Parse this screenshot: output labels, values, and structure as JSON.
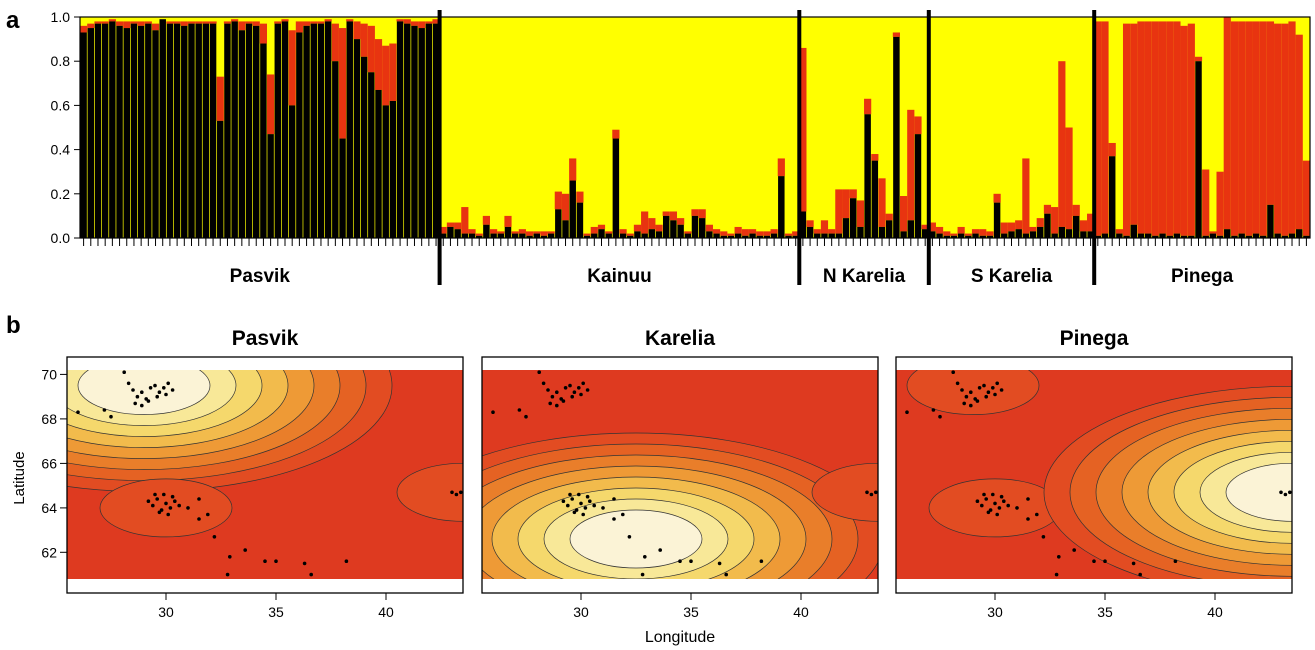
{
  "panel_labels": [
    "a",
    "b"
  ],
  "colors": {
    "yellow": "#ffff00",
    "red": "#e83410",
    "black": "#000000"
  },
  "chart_data": [
    {
      "type": "bar",
      "subtype": "stacked-admixture",
      "ylim": [
        0,
        1
      ],
      "yticks": [
        "0.0",
        "0.2",
        "0.4",
        "0.6",
        "0.8",
        "1.0"
      ],
      "stack_order": [
        "black",
        "red",
        "yellow"
      ],
      "groups": [
        {
          "name": "Pasvik",
          "black": [
            0.93,
            0.95,
            0.97,
            0.97,
            0.98,
            0.96,
            0.95,
            0.97,
            0.96,
            0.97,
            0.94,
            0.99,
            0.97,
            0.97,
            0.96,
            0.97,
            0.97,
            0.97,
            0.97,
            0.53,
            0.97,
            0.98,
            0.94,
            0.97,
            0.96,
            0.88,
            0.47,
            0.97,
            0.98,
            0.6,
            0.93,
            0.96,
            0.97,
            0.97,
            0.98,
            0.8,
            0.45,
            0.98,
            0.9,
            0.82,
            0.75,
            0.67,
            0.6,
            0.62,
            0.98,
            0.97,
            0.96,
            0.95,
            0.97,
            0.97
          ],
          "red": [
            0.03,
            0.02,
            0.01,
            0.01,
            0.01,
            0.02,
            0.03,
            0.01,
            0.02,
            0.01,
            0.03,
            0.0,
            0.01,
            0.01,
            0.02,
            0.01,
            0.01,
            0.01,
            0.01,
            0.2,
            0.01,
            0.01,
            0.04,
            0.01,
            0.02,
            0.09,
            0.27,
            0.01,
            0.01,
            0.34,
            0.05,
            0.02,
            0.01,
            0.01,
            0.01,
            0.17,
            0.5,
            0.01,
            0.08,
            0.15,
            0.21,
            0.23,
            0.27,
            0.26,
            0.01,
            0.02,
            0.02,
            0.03,
            0.01,
            0.02
          ]
        },
        {
          "name": "Kainuu",
          "black": [
            0.02,
            0.05,
            0.04,
            0.02,
            0.02,
            0.01,
            0.06,
            0.02,
            0.02,
            0.05,
            0.02,
            0.02,
            0.01,
            0.02,
            0.01,
            0.02,
            0.13,
            0.08,
            0.26,
            0.16,
            0.01,
            0.02,
            0.04,
            0.02,
            0.45,
            0.02,
            0.01,
            0.03,
            0.02,
            0.04,
            0.03,
            0.1,
            0.08,
            0.06,
            0.02,
            0.1,
            0.09,
            0.03,
            0.02,
            0.01,
            0.01,
            0.02,
            0.01,
            0.02,
            0.01,
            0.01,
            0.02,
            0.28,
            0.01,
            0.01
          ],
          "red": [
            0.03,
            0.02,
            0.03,
            0.12,
            0.02,
            0.01,
            0.04,
            0.02,
            0.01,
            0.05,
            0.01,
            0.02,
            0.02,
            0.01,
            0.02,
            0.01,
            0.08,
            0.12,
            0.1,
            0.05,
            0.01,
            0.03,
            0.02,
            0.01,
            0.04,
            0.02,
            0.01,
            0.03,
            0.1,
            0.05,
            0.03,
            0.02,
            0.04,
            0.03,
            0.01,
            0.03,
            0.04,
            0.03,
            0.02,
            0.02,
            0.01,
            0.03,
            0.03,
            0.02,
            0.02,
            0.02,
            0.02,
            0.08,
            0.01,
            0.02
          ]
        },
        {
          "name": "N Karelia",
          "black": [
            0.12,
            0.05,
            0.02,
            0.02,
            0.02,
            0.02,
            0.09,
            0.18,
            0.05,
            0.56,
            0.35,
            0.05,
            0.08,
            0.91,
            0.03,
            0.08,
            0.47,
            0.04
          ],
          "red": [
            0.74,
            0.03,
            0.02,
            0.06,
            0.02,
            0.2,
            0.13,
            0.04,
            0.12,
            0.07,
            0.03,
            0.22,
            0.03,
            0.02,
            0.16,
            0.5,
            0.08,
            0.02
          ]
        },
        {
          "name": "S Karelia",
          "black": [
            0.03,
            0.02,
            0.01,
            0.01,
            0.02,
            0.01,
            0.02,
            0.01,
            0.01,
            0.16,
            0.02,
            0.03,
            0.04,
            0.02,
            0.03,
            0.05,
            0.11,
            0.02,
            0.05,
            0.04,
            0.1,
            0.03,
            0.03
          ],
          "red": [
            0.04,
            0.03,
            0.02,
            0.01,
            0.03,
            0.01,
            0.02,
            0.03,
            0.02,
            0.04,
            0.05,
            0.04,
            0.04,
            0.34,
            0.02,
            0.04,
            0.04,
            0.12,
            0.75,
            0.46,
            0.05,
            0.05,
            0.08
          ]
        },
        {
          "name": "Pinega",
          "black": [
            0.01,
            0.02,
            0.37,
            0.02,
            0.01,
            0.06,
            0.02,
            0.02,
            0.01,
            0.02,
            0.01,
            0.02,
            0.01,
            0.01,
            0.8,
            0.01,
            0.02,
            0.01,
            0.04,
            0.01,
            0.02,
            0.01,
            0.02,
            0.01,
            0.15,
            0.02,
            0.01,
            0.02,
            0.04,
            0.01
          ],
          "red": [
            0.97,
            0.96,
            0.06,
            0.02,
            0.96,
            0.91,
            0.96,
            0.96,
            0.97,
            0.96,
            0.97,
            0.96,
            0.95,
            0.96,
            0.02,
            0.3,
            0.01,
            0.29,
            0.96,
            0.97,
            0.96,
            0.97,
            0.96,
            0.97,
            0.83,
            0.95,
            0.96,
            0.96,
            0.88,
            0.34
          ]
        }
      ]
    },
    {
      "type": "heatmap",
      "title": "Pasvik",
      "xlabel": "Longitude",
      "ylabel": "Latitude",
      "xticks": [
        "30",
        "35",
        "40"
      ],
      "yticks": [
        "62",
        "64",
        "66",
        "68",
        "70"
      ],
      "xlim": [
        25.5,
        43.5
      ],
      "ylim": [
        60.8,
        70.2
      ],
      "centers": [
        {
          "lon": 29,
          "lat": 69.5,
          "value": 0.95
        },
        {
          "lon": 30,
          "lat": 64,
          "value": 0.15
        },
        {
          "lon": 43.5,
          "lat": 64.7,
          "value": 0.15
        }
      ]
    },
    {
      "type": "heatmap",
      "title": "Karelia",
      "xlabel": "Longitude",
      "ylabel": "Latitude",
      "xticks": [
        "30",
        "35",
        "40"
      ],
      "yticks": [
        "62",
        "64",
        "66",
        "68",
        "70"
      ],
      "xlim": [
        25.5,
        43.5
      ],
      "ylim": [
        60.8,
        70.2
      ],
      "centers": [
        {
          "lon": 29,
          "lat": 69.5,
          "value": 0.05
        },
        {
          "lon": 32.5,
          "lat": 62.6,
          "value": 0.95
        },
        {
          "lon": 43.5,
          "lat": 64.7,
          "value": 0.1
        }
      ]
    },
    {
      "type": "heatmap",
      "title": "Pinega",
      "xlabel": "Longitude",
      "ylabel": "Latitude",
      "xticks": [
        "30",
        "35",
        "40"
      ],
      "yticks": [
        "62",
        "64",
        "66",
        "68",
        "70"
      ],
      "xlim": [
        25.5,
        43.5
      ],
      "ylim": [
        60.8,
        70.2
      ],
      "centers": [
        {
          "lon": 29,
          "lat": 69.5,
          "value": 0.1
        },
        {
          "lon": 30,
          "lat": 64,
          "value": 0.1
        },
        {
          "lon": 43.5,
          "lat": 64.7,
          "value": 0.95
        }
      ]
    }
  ],
  "sample_sites": {
    "north": [
      [
        27.2,
        68.4
      ],
      [
        27.5,
        68.1
      ],
      [
        28.1,
        70.1
      ],
      [
        28.3,
        69.6
      ],
      [
        28.5,
        69.3
      ],
      [
        28.7,
        69.0
      ],
      [
        28.9,
        69.2
      ],
      [
        29.1,
        68.9
      ],
      [
        29.3,
        69.4
      ],
      [
        29.5,
        69.5
      ],
      [
        29.7,
        69.2
      ],
      [
        29.9,
        69.4
      ],
      [
        30.1,
        69.6
      ],
      [
        30.3,
        69.3
      ],
      [
        28.6,
        68.7
      ],
      [
        28.9,
        68.6
      ],
      [
        29.2,
        68.8
      ],
      [
        29.6,
        69.0
      ],
      [
        30.0,
        69.1
      ],
      [
        26.0,
        68.3
      ]
    ],
    "south": [
      [
        29.2,
        64.3
      ],
      [
        29.4,
        64.1
      ],
      [
        29.6,
        64.4
      ],
      [
        29.8,
        63.9
      ],
      [
        30.0,
        64.2
      ],
      [
        30.2,
        64.0
      ],
      [
        30.4,
        64.3
      ],
      [
        29.7,
        63.8
      ],
      [
        30.1,
        63.7
      ],
      [
        29.5,
        64.6
      ],
      [
        30.3,
        64.5
      ],
      [
        30.6,
        64.1
      ],
      [
        29.9,
        64.6
      ],
      [
        31.0,
        64.0
      ],
      [
        31.5,
        63.5
      ],
      [
        32.2,
        62.7
      ],
      [
        32.9,
        61.8
      ],
      [
        33.6,
        62.1
      ],
      [
        34.5,
        61.6
      ],
      [
        35.0,
        61.6
      ],
      [
        36.3,
        61.5
      ],
      [
        36.6,
        61.0
      ],
      [
        38.2,
        61.6
      ],
      [
        32.8,
        61.0
      ],
      [
        31.9,
        63.7
      ],
      [
        31.5,
        64.4
      ]
    ],
    "east": [
      [
        43.0,
        64.7
      ],
      [
        43.2,
        64.6
      ],
      [
        43.4,
        64.7
      ]
    ]
  }
}
